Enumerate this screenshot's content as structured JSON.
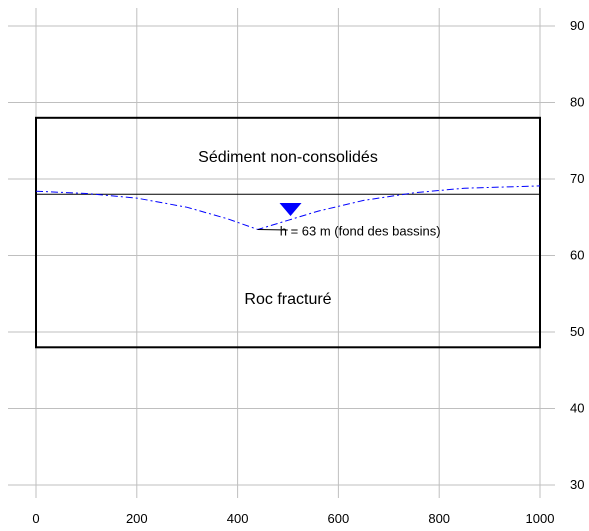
{
  "chart_data": {
    "type": "diagram",
    "xlim": [
      0,
      1000
    ],
    "ylim": [
      30,
      90
    ],
    "grid": true,
    "x_ticks": [
      0,
      200,
      400,
      600,
      800,
      1000
    ],
    "y_ticks": [
      30,
      40,
      50,
      60,
      70,
      80,
      90
    ],
    "x_tick_labels": [
      "0",
      "200",
      "400",
      "600",
      "800",
      "1000"
    ],
    "y_tick_labels": [
      "30",
      "40",
      "50",
      "60",
      "70",
      "80",
      "90"
    ],
    "domain_box": {
      "x": [
        0,
        1000
      ],
      "y": [
        48,
        78
      ]
    },
    "layer_boundary_y": 68,
    "layers": {
      "upper": "Sédiment non-consolidés",
      "lower": "Roc fracturé"
    },
    "water_table": {
      "style": "dashed",
      "color": "#0000ff",
      "points": [
        [
          0,
          68.4
        ],
        [
          100,
          68.1
        ],
        [
          200,
          67.5
        ],
        [
          300,
          66.3
        ],
        [
          380,
          64.8
        ],
        [
          440,
          63.4
        ],
        [
          500,
          64.6
        ],
        [
          560,
          65.8
        ],
        [
          650,
          67.2
        ],
        [
          750,
          68.2
        ],
        [
          850,
          68.8
        ],
        [
          1000,
          69.1
        ]
      ]
    },
    "water_table_marker": {
      "x": 505,
      "y": 67,
      "color": "#0000ff"
    },
    "annotation": {
      "text": "h = 63 m (fond des bassins)",
      "anchor": [
        440,
        63.4
      ]
    },
    "colors": {
      "grid": "#bfbfbf",
      "box": "#000000",
      "water": "#0000ff"
    }
  }
}
